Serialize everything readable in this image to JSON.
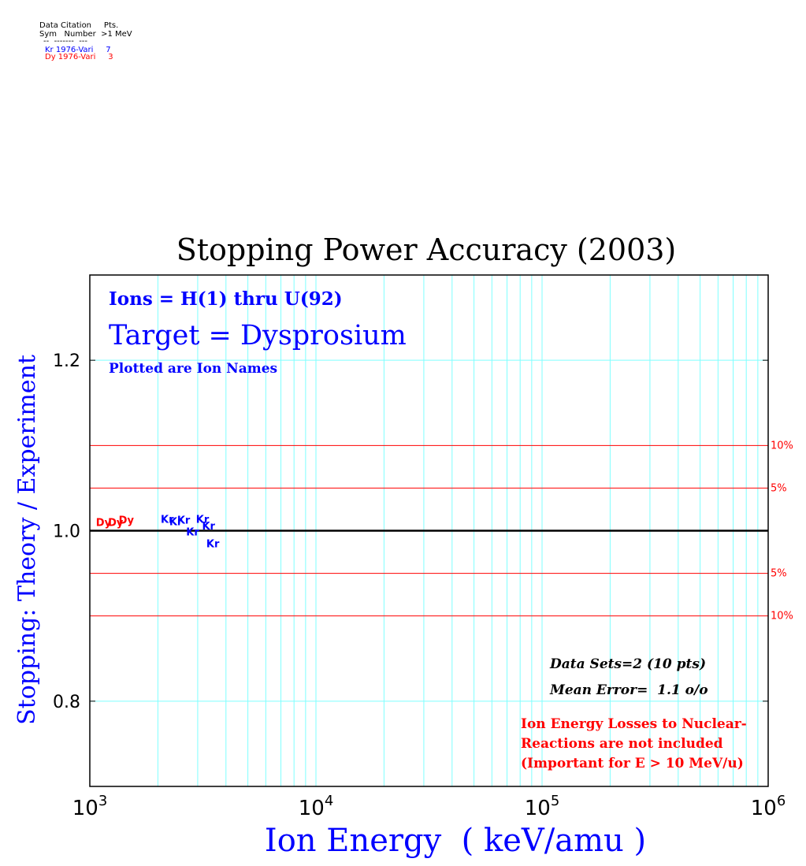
{
  "legend_table": {
    "header_line1": "Data Citation     Pts.",
    "header_line2": "Sym   Number  >1 MeV",
    "rule": "--  -------  ---",
    "rows": [
      {
        "text": "Kr 1976-Vari     7",
        "color": "#0000ff"
      },
      {
        "text": "Dy 1976-Vari     3",
        "color": "#ff0000"
      }
    ]
  },
  "chart_data": {
    "type": "scatter",
    "title": "Stopping Power Accuracy (2003)",
    "xlabel": "Ion Energy  ( keV/amu )",
    "ylabel": "Stopping: Theory / Experiment",
    "x_scale": "log",
    "xlim": [
      1000,
      1000000
    ],
    "ylim": [
      0.7,
      1.3
    ],
    "x_ticks": [
      {
        "value": 1000,
        "base": "10",
        "exp": "3"
      },
      {
        "value": 10000,
        "base": "10",
        "exp": "4"
      },
      {
        "value": 100000,
        "base": "10",
        "exp": "5"
      },
      {
        "value": 1000000,
        "base": "10",
        "exp": "6"
      }
    ],
    "y_ticks": [
      {
        "value": 0.8,
        "label": "0.8"
      },
      {
        "value": 1.0,
        "label": "1.0"
      },
      {
        "value": 1.2,
        "label": "1.2"
      }
    ],
    "grid": true,
    "grid_color": "#7fffff",
    "reference_line": 1.0,
    "bands": [
      {
        "value": 1.1,
        "label": "10%"
      },
      {
        "value": 1.05,
        "label": "5%"
      },
      {
        "value": 0.95,
        "label": "5%"
      },
      {
        "value": 0.9,
        "label": "10%"
      }
    ],
    "annotations": {
      "ions": "Ions = H(1) thru U(92)",
      "target": "Target = Dysprosium",
      "plotted": "Plotted are Ion Names",
      "data_sets": "Data Sets=2 (10 pts)",
      "mean_error": "Mean Error=  1.1 o/o",
      "note_lines": [
        "Ion Energy Losses to Nuclear-",
        "Reactions are not included",
        "(Important for E > 10 MeV/u)"
      ]
    },
    "series": [
      {
        "name": "Kr",
        "color": "#0000ff",
        "points": [
          {
            "x": 2200,
            "y": 1.014
          },
          {
            "x": 2400,
            "y": 1.011
          },
          {
            "x": 2600,
            "y": 1.013
          },
          {
            "x": 2850,
            "y": 0.999
          },
          {
            "x": 3150,
            "y": 1.014
          },
          {
            "x": 3350,
            "y": 1.006
          },
          {
            "x": 3500,
            "y": 0.985
          }
        ]
      },
      {
        "name": "Dy",
        "color": "#ff0000",
        "points": [
          {
            "x": 1150,
            "y": 1.01
          },
          {
            "x": 1300,
            "y": 1.01
          },
          {
            "x": 1450,
            "y": 1.013
          }
        ]
      }
    ]
  }
}
